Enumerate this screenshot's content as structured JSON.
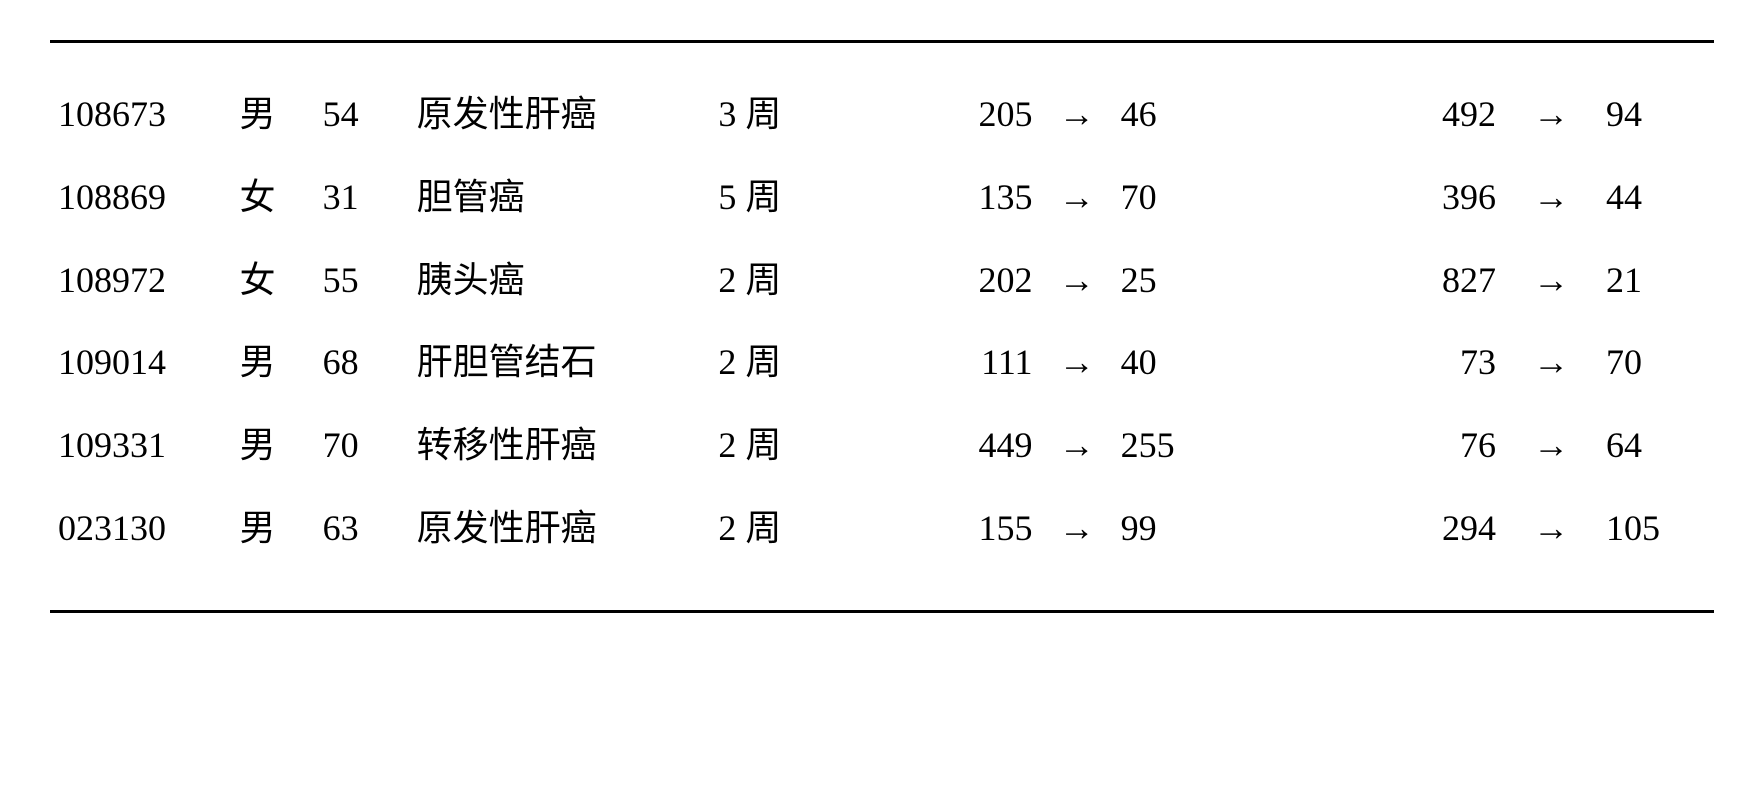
{
  "arrow": "→",
  "rows": [
    {
      "id": "108673",
      "sex": "男",
      "age": "54",
      "dx": "原发性肝癌",
      "dur": "3 周",
      "v1a": "205",
      "v1b": "46",
      "v2a": "492",
      "v2b": "94"
    },
    {
      "id": "108869",
      "sex": "女",
      "age": "31",
      "dx": "胆管癌",
      "dur": "5 周",
      "v1a": "135",
      "v1b": "70",
      "v2a": "396",
      "v2b": "44"
    },
    {
      "id": "108972",
      "sex": "女",
      "age": "55",
      "dx": "胰头癌",
      "dur": "2 周",
      "v1a": "202",
      "v1b": "25",
      "v2a": "827",
      "v2b": "21"
    },
    {
      "id": "109014",
      "sex": "男",
      "age": "68",
      "dx": "肝胆管结石",
      "dur": "2 周",
      "v1a": "111",
      "v1b": "40",
      "v2a": "73",
      "v2b": "70"
    },
    {
      "id": "109331",
      "sex": "男",
      "age": "70",
      "dx": "转移性肝癌",
      "dur": "2 周",
      "v1a": "449",
      "v1b": "255",
      "v2a": "76",
      "v2b": "64"
    },
    {
      "id": "023130",
      "sex": "男",
      "age": "63",
      "dx": "原发性肝癌",
      "dur": "2 周",
      "v1a": "155",
      "v1b": "99",
      "v2a": "294",
      "v2b": "105"
    }
  ]
}
